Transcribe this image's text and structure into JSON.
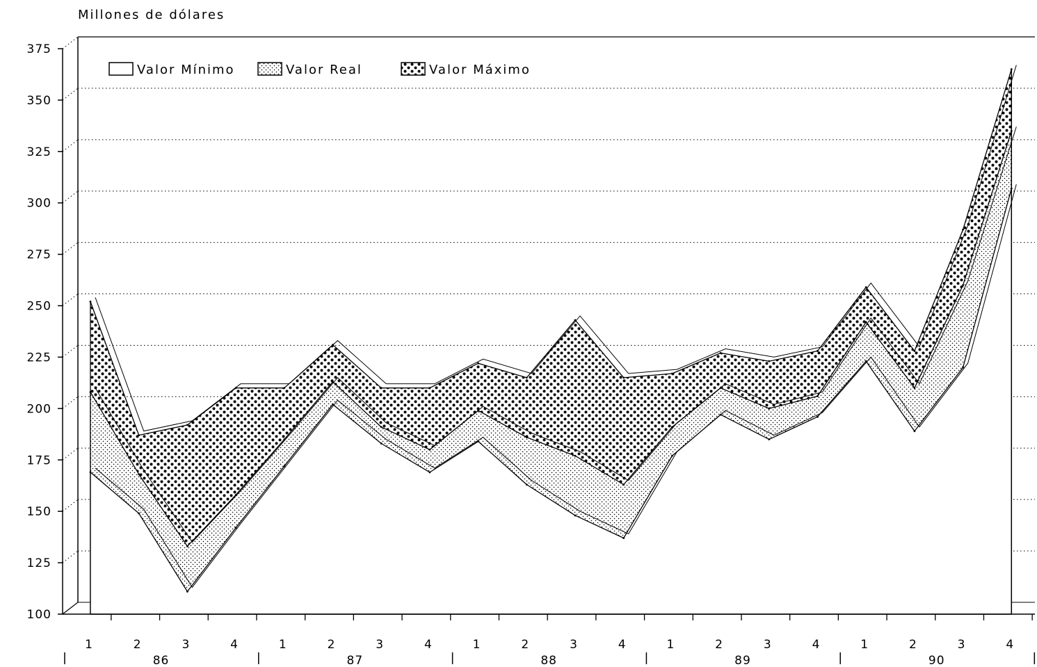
{
  "chart_data": {
    "type": "area",
    "ylabel": "Millones de dólares",
    "ylim": [
      100,
      375
    ],
    "yticks": [
      100,
      125,
      150,
      175,
      200,
      225,
      250,
      275,
      300,
      325,
      350,
      375
    ],
    "grid": "horizontal-dotted",
    "legend_position": "top-left",
    "x": [
      "1",
      "2",
      "3",
      "4",
      "1",
      "2",
      "3",
      "4",
      "1",
      "2",
      "3",
      "4",
      "1",
      "2",
      "3",
      "4",
      "1",
      "2",
      "3",
      "4"
    ],
    "year_groups": [
      {
        "label": "86",
        "start": 0,
        "end": 3
      },
      {
        "label": "87",
        "start": 4,
        "end": 7
      },
      {
        "label": "88",
        "start": 8,
        "end": 11
      },
      {
        "label": "89",
        "start": 12,
        "end": 15
      },
      {
        "label": "90",
        "start": 16,
        "end": 19
      }
    ],
    "series": [
      {
        "name": "Valor Mínimo",
        "pattern": "none",
        "values": [
          169,
          149,
          111,
          142,
          172,
          202,
          183,
          169,
          184,
          163,
          148,
          137,
          177,
          197,
          185,
          196,
          223,
          189,
          220,
          307
        ]
      },
      {
        "name": "Valor Real",
        "pattern": "light-dots",
        "values": [
          208,
          168,
          133,
          158,
          185,
          213,
          191,
          180,
          199,
          186,
          177,
          163,
          191,
          210,
          200,
          206,
          242,
          210,
          260,
          335
        ]
      },
      {
        "name": "Valor Máximo",
        "pattern": "heavy-dots",
        "values": [
          252,
          187,
          192,
          210,
          210,
          231,
          210,
          210,
          222,
          215,
          243,
          215,
          217,
          227,
          223,
          228,
          259,
          228,
          287,
          365
        ]
      }
    ]
  }
}
